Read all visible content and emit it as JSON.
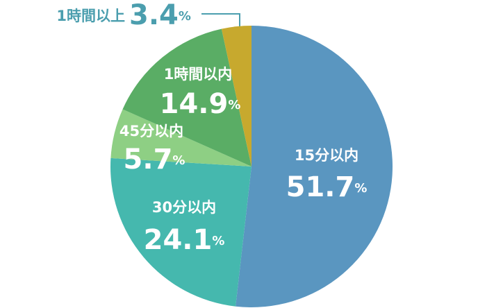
{
  "chart_data": {
    "type": "pie",
    "categories": [
      "15分以内",
      "30分以内",
      "45分以内",
      "1時間以内",
      "1時間以上"
    ],
    "values": [
      51.7,
      24.1,
      5.7,
      14.9,
      3.4
    ],
    "value_labels": [
      "51.7%",
      "24.1%",
      "5.7%",
      "14.9%",
      "3.4%"
    ],
    "colors": [
      "#5a96c0",
      "#45b8ae",
      "#8ecf84",
      "#5aad65",
      "#c7a92e"
    ]
  }
}
